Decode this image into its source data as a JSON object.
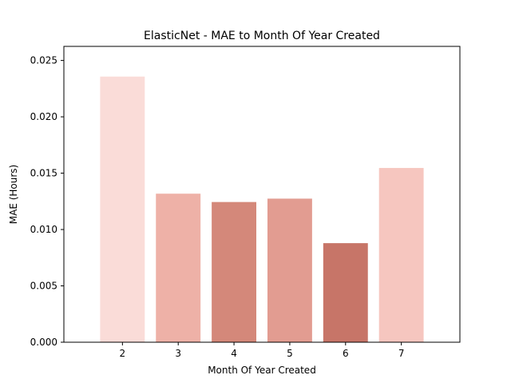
{
  "chart_data": {
    "type": "bar",
    "title": "ElasticNet - MAE to Month Of Year Created",
    "xlabel": "Month Of Year Created",
    "ylabel": "MAE (Hours)",
    "categories": [
      "2",
      "3",
      "4",
      "5",
      "6",
      "7"
    ],
    "values": [
      0.02357,
      0.01318,
      0.01244,
      0.01274,
      0.00879,
      0.01546
    ],
    "colors": [
      "#fadcd8",
      "#eeb1a7",
      "#d4887a",
      "#e29c91",
      "#c77568",
      "#f6c6bf"
    ],
    "yticks": [
      "0.000",
      "0.005",
      "0.010",
      "0.015",
      "0.020",
      "0.025"
    ],
    "ylim": [
      0,
      0.02625
    ],
    "grid": false,
    "legend": "none"
  }
}
